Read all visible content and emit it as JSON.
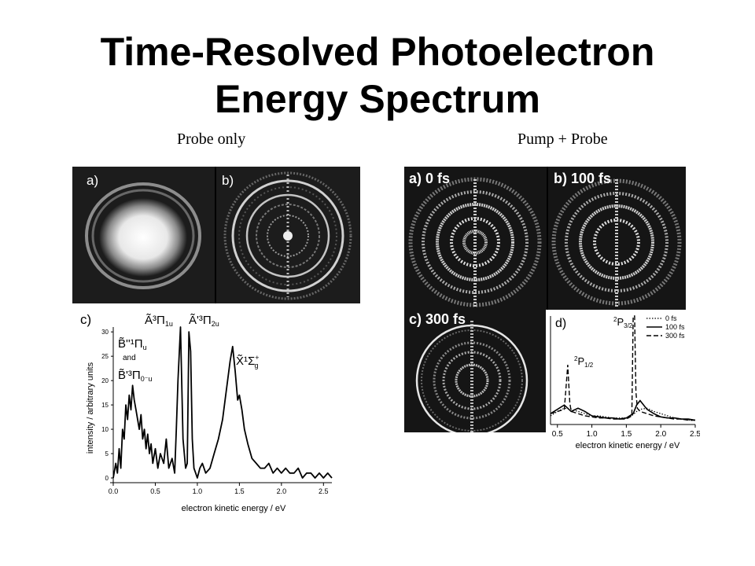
{
  "slide": {
    "title_line1": "Time-Resolved Photoelectron",
    "title_line2": "Energy Spectrum",
    "caption_left": "Probe only",
    "caption_right": "Pump + Probe"
  },
  "images": {
    "left_a": "a)",
    "left_b": "b)",
    "right_a": "a) 0 fs",
    "right_b": "b) 100 fs",
    "right_c": "c) 300 fs"
  },
  "chart_data": [
    {
      "type": "line",
      "panel_label": "c)",
      "xlabel": "electron kinetic energy / eV",
      "ylabel": "intensity / arbitrary units",
      "xlim": [
        0,
        2.6
      ],
      "ylim": [
        0,
        31
      ],
      "xticks": [
        "0.0",
        "0.5",
        "1.0",
        "1.5",
        "2.0",
        "2.5"
      ],
      "yticks": [
        "0",
        "5",
        "10",
        "15",
        "20",
        "25",
        "30"
      ],
      "annotations": [
        {
          "text": "Ã³Π1u",
          "x": 0.8
        },
        {
          "text": "Ã'³Π2u",
          "x": 0.92
        },
        {
          "text": "B̃''¹Πu",
          "x": 0.15
        },
        {
          "text": "and",
          "x": 0.15
        },
        {
          "text": "B̃'³Π0⁻u",
          "x": 0.15
        },
        {
          "text": "X̃¹Σg⁺",
          "x": 1.55
        }
      ],
      "series": [
        {
          "x": [
            0.0,
            0.03,
            0.05,
            0.07,
            0.09,
            0.11,
            0.13,
            0.15,
            0.17,
            0.19,
            0.21,
            0.23,
            0.25,
            0.27,
            0.29,
            0.31,
            0.33,
            0.35,
            0.37,
            0.39,
            0.41,
            0.43,
            0.45,
            0.47,
            0.5,
            0.53,
            0.56,
            0.6,
            0.63,
            0.66,
            0.7,
            0.73,
            0.75,
            0.77,
            0.8,
            0.83,
            0.86,
            0.88,
            0.9,
            0.92,
            0.94,
            0.96,
            0.98,
            1.0,
            1.03,
            1.06,
            1.1,
            1.15,
            1.2,
            1.25,
            1.3,
            1.33,
            1.36,
            1.39,
            1.42,
            1.45,
            1.48,
            1.5,
            1.53,
            1.56,
            1.6,
            1.65,
            1.7,
            1.75,
            1.8,
            1.85,
            1.9,
            1.95,
            2.0,
            2.05,
            2.1,
            2.15,
            2.2,
            2.25,
            2.3,
            2.35,
            2.4,
            2.45,
            2.5,
            2.55,
            2.6
          ],
          "values": [
            0,
            3,
            1,
            6,
            2,
            10,
            8,
            15,
            12,
            17,
            14,
            19,
            16,
            14,
            12,
            10,
            13,
            8,
            10,
            6,
            9,
            5,
            7,
            3,
            6,
            2,
            5,
            3,
            8,
            2,
            4,
            1,
            10,
            20,
            31,
            8,
            2,
            3,
            30,
            26,
            8,
            2,
            1,
            0,
            2,
            3,
            1,
            2,
            5,
            8,
            12,
            16,
            20,
            24,
            27,
            22,
            16,
            17,
            14,
            10,
            7,
            4,
            3,
            2,
            2,
            3,
            1,
            2,
            1,
            2,
            1,
            1,
            2,
            0,
            1,
            1,
            0,
            1,
            0,
            1,
            0
          ]
        }
      ]
    },
    {
      "type": "line",
      "panel_label": "d)",
      "xlabel": "electron kinetic energy / eV",
      "xlim": [
        0.4,
        2.5
      ],
      "xticks": [
        "0.5",
        "1.0",
        "1.5",
        "2.0",
        "2.5"
      ],
      "annotations": [
        {
          "text": "²P1/2",
          "x": 0.65
        },
        {
          "text": "²P3/2",
          "x": 1.62
        }
      ],
      "legend": [
        "0 fs",
        "100 fs",
        "300 fs"
      ],
      "legend_position": "top-right",
      "series": [
        {
          "name": "0 fs",
          "x": [
            0.4,
            0.5,
            0.6,
            0.7,
            0.8,
            0.9,
            1.0,
            1.1,
            1.2,
            1.3,
            1.4,
            1.5,
            1.6,
            1.65,
            1.7,
            1.8,
            1.9,
            2.0,
            2.1,
            2.2,
            2.3,
            2.4,
            2.5
          ],
          "values": [
            0.08,
            0.12,
            0.15,
            0.14,
            0.12,
            0.1,
            0.08,
            0.08,
            0.07,
            0.06,
            0.06,
            0.06,
            0.09,
            0.12,
            0.14,
            0.15,
            0.12,
            0.1,
            0.08,
            0.06,
            0.05,
            0.04,
            0.04
          ]
        },
        {
          "name": "100 fs",
          "x": [
            0.4,
            0.5,
            0.6,
            0.7,
            0.8,
            0.9,
            1.0,
            1.1,
            1.2,
            1.3,
            1.4,
            1.5,
            1.6,
            1.65,
            1.7,
            1.8,
            1.9,
            2.0,
            2.1,
            2.2,
            2.3,
            2.4,
            2.5
          ],
          "values": [
            0.1,
            0.14,
            0.18,
            0.12,
            0.15,
            0.12,
            0.08,
            0.07,
            0.06,
            0.06,
            0.05,
            0.06,
            0.1,
            0.18,
            0.22,
            0.14,
            0.1,
            0.07,
            0.06,
            0.06,
            0.05,
            0.05,
            0.04
          ]
        },
        {
          "name": "300 fs",
          "x": [
            0.4,
            0.5,
            0.6,
            0.62,
            0.65,
            0.68,
            0.7,
            0.8,
            0.9,
            1.0,
            1.1,
            1.2,
            1.3,
            1.4,
            1.5,
            1.58,
            1.6,
            1.62,
            1.64,
            1.66,
            1.7,
            1.8,
            1.9,
            2.0,
            2.1,
            2.2,
            2.3,
            2.4,
            2.5
          ],
          "values": [
            0.1,
            0.12,
            0.14,
            0.3,
            0.55,
            0.2,
            0.12,
            0.1,
            0.08,
            0.07,
            0.06,
            0.06,
            0.05,
            0.05,
            0.05,
            0.08,
            1.0,
            1.0,
            0.3,
            0.15,
            0.12,
            0.1,
            0.08,
            0.07,
            0.06,
            0.05,
            0.05,
            0.04,
            0.04
          ]
        }
      ]
    }
  ]
}
